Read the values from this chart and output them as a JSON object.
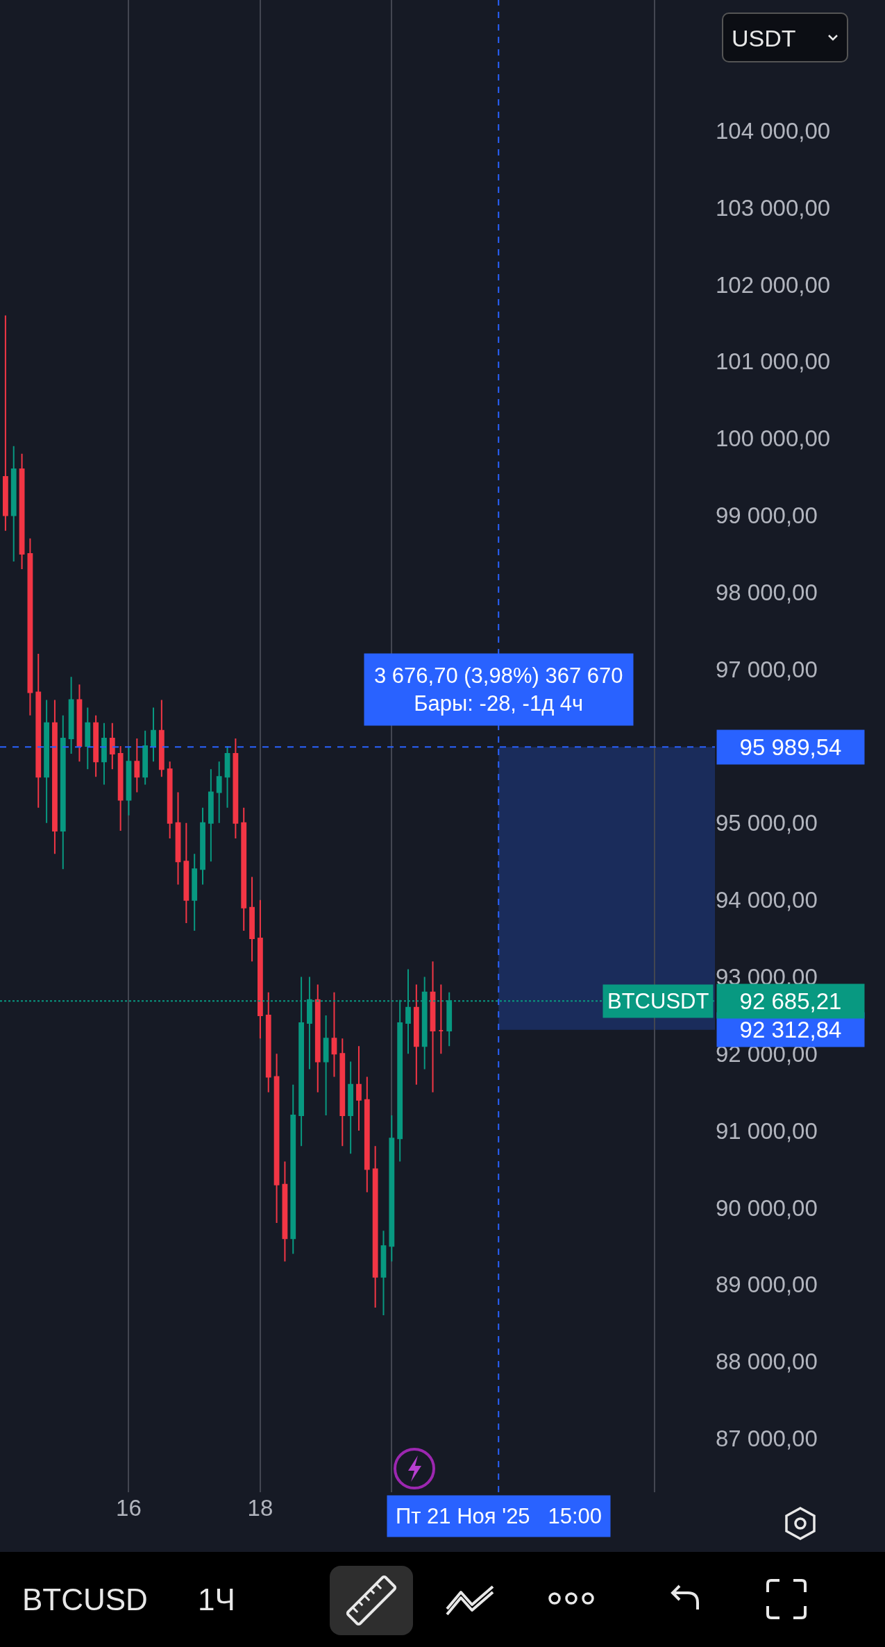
{
  "chart_data": {
    "type": "candlestick",
    "x": [
      "2025-11-14T03:00",
      "2025-11-14T06:00",
      "2025-11-14T09:00",
      "2025-11-14T12:00",
      "2025-11-14T15:00",
      "2025-11-14T18:00",
      "2025-11-14T21:00",
      "2025-11-15T00:00",
      "2025-11-15T03:00",
      "2025-11-15T06:00",
      "2025-11-15T09:00",
      "2025-11-15T12:00",
      "2025-11-15T15:00",
      "2025-11-15T18:00",
      "2025-11-15T21:00",
      "2025-11-16T00:00",
      "2025-11-16T03:00",
      "2025-11-16T06:00",
      "2025-11-16T09:00",
      "2025-11-16T12:00",
      "2025-11-16T15:00",
      "2025-11-16T18:00",
      "2025-11-16T21:00",
      "2025-11-17T00:00",
      "2025-11-17T03:00",
      "2025-11-17T06:00",
      "2025-11-17T09:00",
      "2025-11-17T12:00",
      "2025-11-17T15:00",
      "2025-11-17T18:00",
      "2025-11-17T21:00",
      "2025-11-18T00:00",
      "2025-11-18T03:00",
      "2025-11-18T06:00",
      "2025-11-18T09:00",
      "2025-11-18T12:00",
      "2025-11-18T15:00",
      "2025-11-18T18:00",
      "2025-11-18T21:00",
      "2025-11-19T00:00",
      "2025-11-19T03:00",
      "2025-11-19T06:00",
      "2025-11-19T09:00",
      "2025-11-19T12:00",
      "2025-11-19T15:00",
      "2025-11-19T18:00",
      "2025-11-19T21:00",
      "2025-11-20T00:00",
      "2025-11-20T03:00",
      "2025-11-20T06:00",
      "2025-11-20T09:00",
      "2025-11-20T12:00",
      "2025-11-20T15:00",
      "2025-11-20T18:00",
      "2025-11-20T21:00"
    ],
    "ohlc": [
      [
        99500,
        101600,
        98800,
        99000
      ],
      [
        99000,
        99900,
        98400,
        99600
      ],
      [
        99600,
        99800,
        98300,
        98500
      ],
      [
        98500,
        98700,
        96400,
        96700
      ],
      [
        96700,
        97200,
        95200,
        95600
      ],
      [
        95600,
        96600,
        95000,
        96300
      ],
      [
        96300,
        96600,
        94600,
        94900
      ],
      [
        94900,
        96400,
        94400,
        96100
      ],
      [
        96100,
        96900,
        95900,
        96600
      ],
      [
        96600,
        96800,
        95800,
        96000
      ],
      [
        96000,
        96500,
        95700,
        96300
      ],
      [
        96300,
        96400,
        95600,
        95800
      ],
      [
        95800,
        96300,
        95500,
        96100
      ],
      [
        96100,
        96300,
        95700,
        95900
      ],
      [
        95900,
        96000,
        94900,
        95300
      ],
      [
        95300,
        96000,
        95100,
        95800
      ],
      [
        95800,
        96100,
        95400,
        95600
      ],
      [
        95600,
        96200,
        95500,
        96000
      ],
      [
        96000,
        96500,
        95800,
        96200
      ],
      [
        96200,
        96600,
        95600,
        95700
      ],
      [
        95700,
        95800,
        94800,
        95000
      ],
      [
        95000,
        95400,
        94200,
        94500
      ],
      [
        94500,
        95000,
        93700,
        94000
      ],
      [
        94000,
        94600,
        93600,
        94400
      ],
      [
        94400,
        95200,
        94200,
        95000
      ],
      [
        95000,
        95700,
        94500,
        95400
      ],
      [
        95400,
        95800,
        95000,
        95600
      ],
      [
        95600,
        96000,
        95200,
        95900
      ],
      [
        95900,
        96100,
        94800,
        95000
      ],
      [
        95000,
        95200,
        93600,
        93900
      ],
      [
        93900,
        94300,
        93200,
        93500
      ],
      [
        93500,
        94000,
        92200,
        92500
      ],
      [
        92500,
        92800,
        91500,
        91700
      ],
      [
        91700,
        92000,
        89800,
        90300
      ],
      [
        90300,
        90600,
        89300,
        89600
      ],
      [
        89600,
        91600,
        89400,
        91200
      ],
      [
        91200,
        93000,
        90800,
        92400
      ],
      [
        92400,
        93000,
        91800,
        92700
      ],
      [
        92700,
        92900,
        91500,
        91900
      ],
      [
        91900,
        92500,
        91200,
        92200
      ],
      [
        92200,
        92800,
        91700,
        92000
      ],
      [
        92000,
        92200,
        90800,
        91200
      ],
      [
        91200,
        91900,
        90700,
        91600
      ],
      [
        91600,
        92100,
        91000,
        91400
      ],
      [
        91400,
        91700,
        90200,
        90500
      ],
      [
        90500,
        90800,
        88700,
        89100
      ],
      [
        89100,
        89700,
        88600,
        89500
      ],
      [
        89500,
        91200,
        89300,
        90900
      ],
      [
        90900,
        92700,
        90600,
        92400
      ],
      [
        92400,
        93100,
        92000,
        92600
      ],
      [
        92600,
        92900,
        91600,
        92100
      ],
      [
        92100,
        93000,
        91800,
        92800
      ],
      [
        92800,
        93200,
        91500,
        92300
      ],
      [
        92300,
        92900,
        92000,
        92300
      ],
      [
        92300,
        92800,
        92100,
        92685.21
      ]
    ],
    "xlim": [
      "2025-11-14T01:00",
      "2025-11-24T22:00"
    ],
    "xticks": [
      {
        "value": "2025-11-16",
        "label": "16"
      },
      {
        "value": "2025-11-18",
        "label": "18"
      },
      {
        "value": "2025-11-20",
        "label": null
      },
      {
        "value": "2025-11-24",
        "label": null
      }
    ],
    "ylim": [
      86300,
      105700
    ],
    "yticks": [
      {
        "value": 87000,
        "label": "87 000,00"
      },
      {
        "value": 88000,
        "label": "88 000,00"
      },
      {
        "value": 89000,
        "label": "89 000,00"
      },
      {
        "value": 90000,
        "label": "90 000,00"
      },
      {
        "value": 91000,
        "label": "91 000,00"
      },
      {
        "value": 92000,
        "label": "92 000,00"
      },
      {
        "value": 93000,
        "label": "93 000,00"
      },
      {
        "value": 94000,
        "label": "94 000,00"
      },
      {
        "value": 95000,
        "label": "95 000,00"
      },
      {
        "value": 96000,
        "label": null
      },
      {
        "value": 97000,
        "label": "97 000,00"
      },
      {
        "value": 98000,
        "label": "98 000,00"
      },
      {
        "value": 99000,
        "label": "99 000,00"
      },
      {
        "value": 100000,
        "label": "100 000,00"
      },
      {
        "value": 101000,
        "label": "101 000,00"
      },
      {
        "value": 102000,
        "label": "102 000,00"
      },
      {
        "value": 103000,
        "label": "103 000,00"
      },
      {
        "value": 104000,
        "label": "104 000,00"
      }
    ],
    "grid": "x",
    "ref_lines": [
      {
        "axis": "y",
        "value": 95989.54,
        "label": "95 989,54",
        "color": "#2962ff",
        "line_style": "dashed"
      },
      {
        "axis": "x",
        "value": "2025-11-21T15:00",
        "label": "Пт 21 Ноя '25   15:00",
        "color": "#2962ff",
        "line_style": "dashed"
      },
      {
        "axis": "y",
        "value": 92685.21,
        "label": "92 685,21",
        "color": "#089981",
        "line_style": "dotted"
      }
    ],
    "bands": [
      {
        "axis": "y",
        "from": 92312.84,
        "to": 95989.54,
        "label": "92 312,84",
        "color": "#2962ff"
      }
    ],
    "annotations": [
      "3 676,70 (3,98%) 367 670",
      "Бары: -28, -1д 4ч",
      "BTCUSDT",
      "USDT",
      "BTCUSD",
      "1Ч"
    ]
  }
}
